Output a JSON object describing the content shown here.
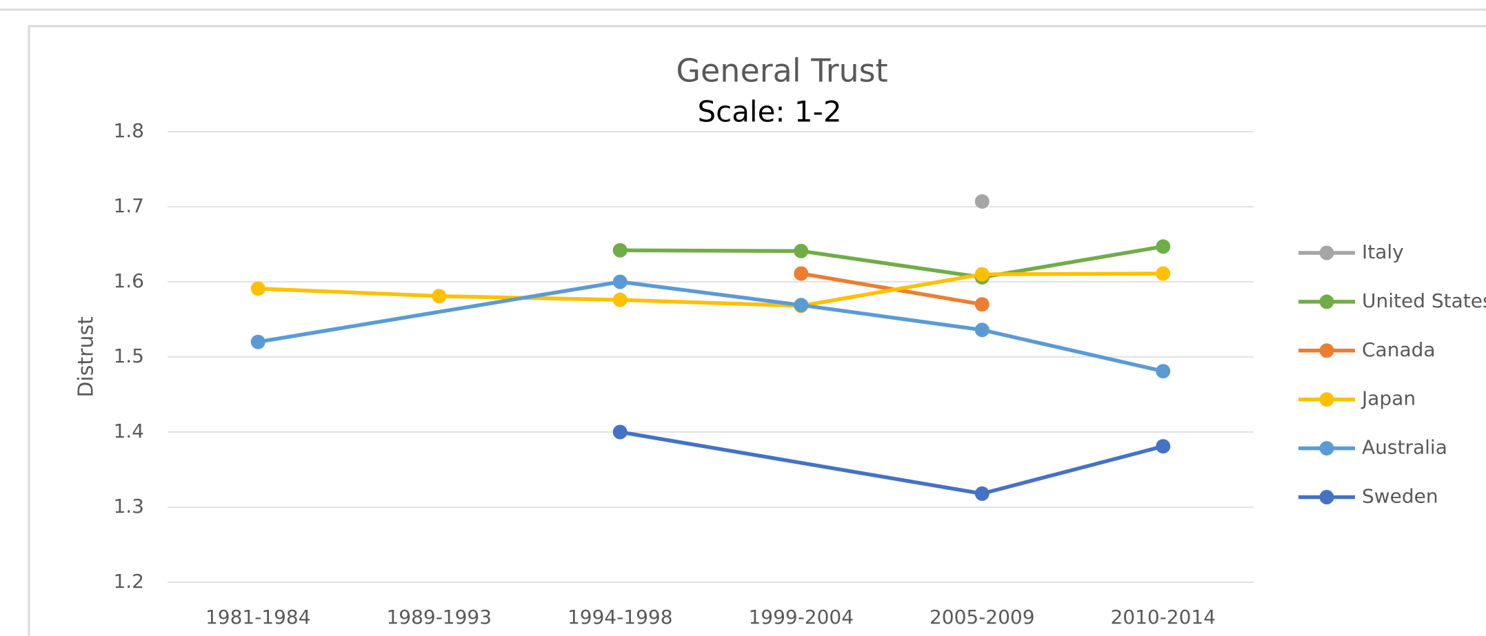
{
  "chart_data": {
    "type": "line",
    "title": "General Trust",
    "subtitle": "Scale: 1-2",
    "y_label": "Distrust",
    "categories": [
      "1981-1984",
      "1989-1993",
      "1994-1998",
      "1999-2004",
      "2005-2009",
      "2010-2014"
    ],
    "series": [
      {
        "name": "Italy",
        "color": "#a5a5a5",
        "values": [
          null,
          null,
          null,
          null,
          1.707,
          null
        ]
      },
      {
        "name": "United States",
        "color": "#70ad47",
        "values": [
          null,
          null,
          1.642,
          1.641,
          1.606,
          1.647
        ]
      },
      {
        "name": "Canada",
        "color": "#ed7d31",
        "values": [
          null,
          null,
          null,
          1.611,
          1.57,
          null
        ]
      },
      {
        "name": "Japan",
        "color": "#ffc000",
        "values": [
          1.591,
          1.581,
          1.576,
          1.568,
          1.61,
          1.611
        ]
      },
      {
        "name": "Australia",
        "color": "#5b9bd5",
        "values": [
          1.52,
          null,
          1.6,
          1.569,
          1.536,
          1.481
        ]
      },
      {
        "name": "Sweden",
        "color": "#4472c4",
        "values": [
          null,
          null,
          1.4,
          null,
          1.318,
          1.381
        ]
      }
    ],
    "ylim": [
      1.2,
      1.8
    ],
    "yticks": [
      1.2,
      1.3,
      1.4,
      1.5,
      1.6,
      1.7,
      1.8
    ],
    "grid": true,
    "connect_gaps": true,
    "legend": "right"
  }
}
